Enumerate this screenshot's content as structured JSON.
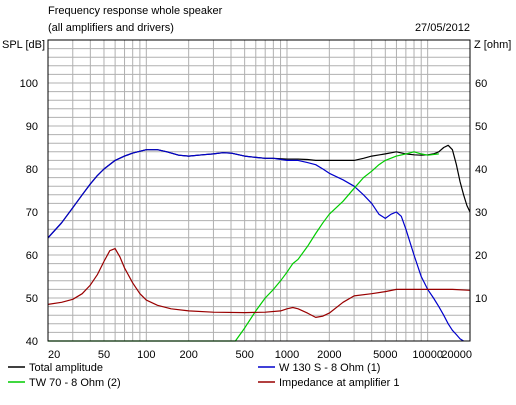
{
  "chart_data": {
    "type": "line",
    "title": "Frequency response whole speaker",
    "subtitle": "(all amplifiers and drivers)",
    "date": "27/05/2012",
    "ylabel": "SPL [dB]",
    "ylabel_right": "Z [ohm]",
    "x_scale": "log",
    "xlim": [
      20,
      20000
    ],
    "ylim": [
      40,
      110
    ],
    "ylim_right": [
      0,
      70
    ],
    "x_ticks": [
      20,
      50,
      100,
      200,
      500,
      1000,
      2000,
      5000,
      10000,
      20000
    ],
    "x_tick_labels": [
      "20",
      "50",
      "100",
      "200",
      "500",
      "1000",
      "2000",
      "5000",
      "10000",
      "20000"
    ],
    "y_ticks": [
      40,
      50,
      60,
      70,
      80,
      90,
      100
    ],
    "y_tick_labels": [
      "40",
      "50",
      "60",
      "70",
      "80",
      "90",
      "100"
    ],
    "y_right_ticks": [
      10,
      20,
      30,
      40,
      50,
      60
    ],
    "y_right_tick_labels": [
      "10",
      "20",
      "30",
      "40",
      "50",
      "60"
    ],
    "grid": true,
    "legend_position": "bottom",
    "series": [
      {
        "name": "Total amplitude",
        "color": "#000000",
        "axis": "left",
        "points": [
          [
            20,
            64
          ],
          [
            25,
            67.5
          ],
          [
            30,
            71
          ],
          [
            35,
            74
          ],
          [
            40,
            76.5
          ],
          [
            45,
            78.5
          ],
          [
            50,
            80
          ],
          [
            60,
            82
          ],
          [
            70,
            83
          ],
          [
            80,
            83.7
          ],
          [
            100,
            84.5
          ],
          [
            120,
            84.5
          ],
          [
            140,
            84
          ],
          [
            170,
            83.2
          ],
          [
            200,
            83
          ],
          [
            250,
            83.3
          ],
          [
            300,
            83.5
          ],
          [
            350,
            83.8
          ],
          [
            400,
            83.7
          ],
          [
            500,
            83
          ],
          [
            600,
            82.7
          ],
          [
            700,
            82.5
          ],
          [
            800,
            82.5
          ],
          [
            1000,
            82.3
          ],
          [
            1200,
            82.3
          ],
          [
            1400,
            82.2
          ],
          [
            1600,
            82
          ],
          [
            2000,
            82
          ],
          [
            2500,
            82
          ],
          [
            3000,
            82
          ],
          [
            3500,
            82.5
          ],
          [
            4000,
            83
          ],
          [
            5000,
            83.5
          ],
          [
            6000,
            84
          ],
          [
            7000,
            83.5
          ],
          [
            8000,
            83.3
          ],
          [
            9000,
            83.2
          ],
          [
            10000,
            83.3
          ],
          [
            11000,
            83.5
          ],
          [
            12000,
            84
          ],
          [
            13000,
            85
          ],
          [
            14000,
            85.5
          ],
          [
            15000,
            84.5
          ],
          [
            16000,
            81
          ],
          [
            17000,
            77
          ],
          [
            18000,
            74
          ],
          [
            19000,
            71.5
          ],
          [
            20000,
            70
          ]
        ]
      },
      {
        "name": "W 130 S - 8 Ohm (1)",
        "color": "#0000cc",
        "axis": "left",
        "points": [
          [
            20,
            64
          ],
          [
            25,
            67.5
          ],
          [
            30,
            71
          ],
          [
            35,
            74
          ],
          [
            40,
            76.5
          ],
          [
            45,
            78.5
          ],
          [
            50,
            80
          ],
          [
            60,
            82
          ],
          [
            70,
            83
          ],
          [
            80,
            83.7
          ],
          [
            100,
            84.5
          ],
          [
            120,
            84.5
          ],
          [
            140,
            84
          ],
          [
            170,
            83.2
          ],
          [
            200,
            83
          ],
          [
            250,
            83.3
          ],
          [
            300,
            83.5
          ],
          [
            350,
            83.8
          ],
          [
            400,
            83.7
          ],
          [
            500,
            83
          ],
          [
            600,
            82.7
          ],
          [
            700,
            82.5
          ],
          [
            800,
            82.5
          ],
          [
            1000,
            82
          ],
          [
            1200,
            82
          ],
          [
            1400,
            81.5
          ],
          [
            1600,
            81
          ],
          [
            1800,
            80
          ],
          [
            2000,
            79
          ],
          [
            2500,
            77.5
          ],
          [
            3000,
            76
          ],
          [
            3500,
            74
          ],
          [
            4000,
            72
          ],
          [
            4500,
            69.5
          ],
          [
            5000,
            68.5
          ],
          [
            5500,
            69.5
          ],
          [
            6000,
            70
          ],
          [
            6500,
            69
          ],
          [
            7000,
            66
          ],
          [
            8000,
            60
          ],
          [
            9000,
            55
          ],
          [
            10000,
            52
          ],
          [
            11000,
            50
          ],
          [
            12000,
            48
          ],
          [
            13000,
            46
          ],
          [
            14000,
            44
          ],
          [
            15000,
            42.5
          ],
          [
            16000,
            41.5
          ],
          [
            17000,
            40.5
          ],
          [
            18000,
            40
          ]
        ]
      },
      {
        "name": "TW 70 - 8 Ohm (2)",
        "color": "#00cc00",
        "axis": "left",
        "points": [
          [
            20,
            40
          ],
          [
            430,
            40
          ],
          [
            500,
            43
          ],
          [
            600,
            47
          ],
          [
            700,
            50
          ],
          [
            800,
            52
          ],
          [
            900,
            54
          ],
          [
            1000,
            56
          ],
          [
            1100,
            58
          ],
          [
            1200,
            59
          ],
          [
            1400,
            62
          ],
          [
            1600,
            65
          ],
          [
            1800,
            67.5
          ],
          [
            2000,
            69.5
          ],
          [
            2500,
            72.5
          ],
          [
            3000,
            75.5
          ],
          [
            3500,
            78
          ],
          [
            4000,
            79.5
          ],
          [
            4500,
            81
          ],
          [
            5000,
            82
          ],
          [
            6000,
            83
          ],
          [
            7000,
            83.5
          ],
          [
            8000,
            84
          ],
          [
            9000,
            83.5
          ],
          [
            10000,
            83.2
          ],
          [
            12000,
            83.5
          ]
        ]
      },
      {
        "name": "Impedance at amplifier 1",
        "color": "#990000",
        "axis": "right",
        "points": [
          [
            20,
            8.5
          ],
          [
            25,
            9
          ],
          [
            30,
            9.7
          ],
          [
            35,
            11
          ],
          [
            40,
            13
          ],
          [
            45,
            15.5
          ],
          [
            50,
            18.5
          ],
          [
            55,
            21
          ],
          [
            60,
            21.5
          ],
          [
            65,
            19.5
          ],
          [
            70,
            17
          ],
          [
            80,
            13.5
          ],
          [
            90,
            11
          ],
          [
            100,
            9.5
          ],
          [
            120,
            8.3
          ],
          [
            150,
            7.5
          ],
          [
            200,
            7
          ],
          [
            300,
            6.7
          ],
          [
            500,
            6.6
          ],
          [
            700,
            6.7
          ],
          [
            900,
            7
          ],
          [
            1000,
            7.5
          ],
          [
            1100,
            7.8
          ],
          [
            1200,
            7.5
          ],
          [
            1400,
            6.5
          ],
          [
            1600,
            5.5
          ],
          [
            1800,
            5.8
          ],
          [
            2000,
            6.5
          ],
          [
            2500,
            9
          ],
          [
            3000,
            10.5
          ],
          [
            4000,
            11
          ],
          [
            5000,
            11.5
          ],
          [
            6000,
            12
          ],
          [
            8000,
            12
          ],
          [
            10000,
            12
          ],
          [
            15000,
            12
          ],
          [
            20000,
            11.8
          ]
        ]
      }
    ]
  }
}
